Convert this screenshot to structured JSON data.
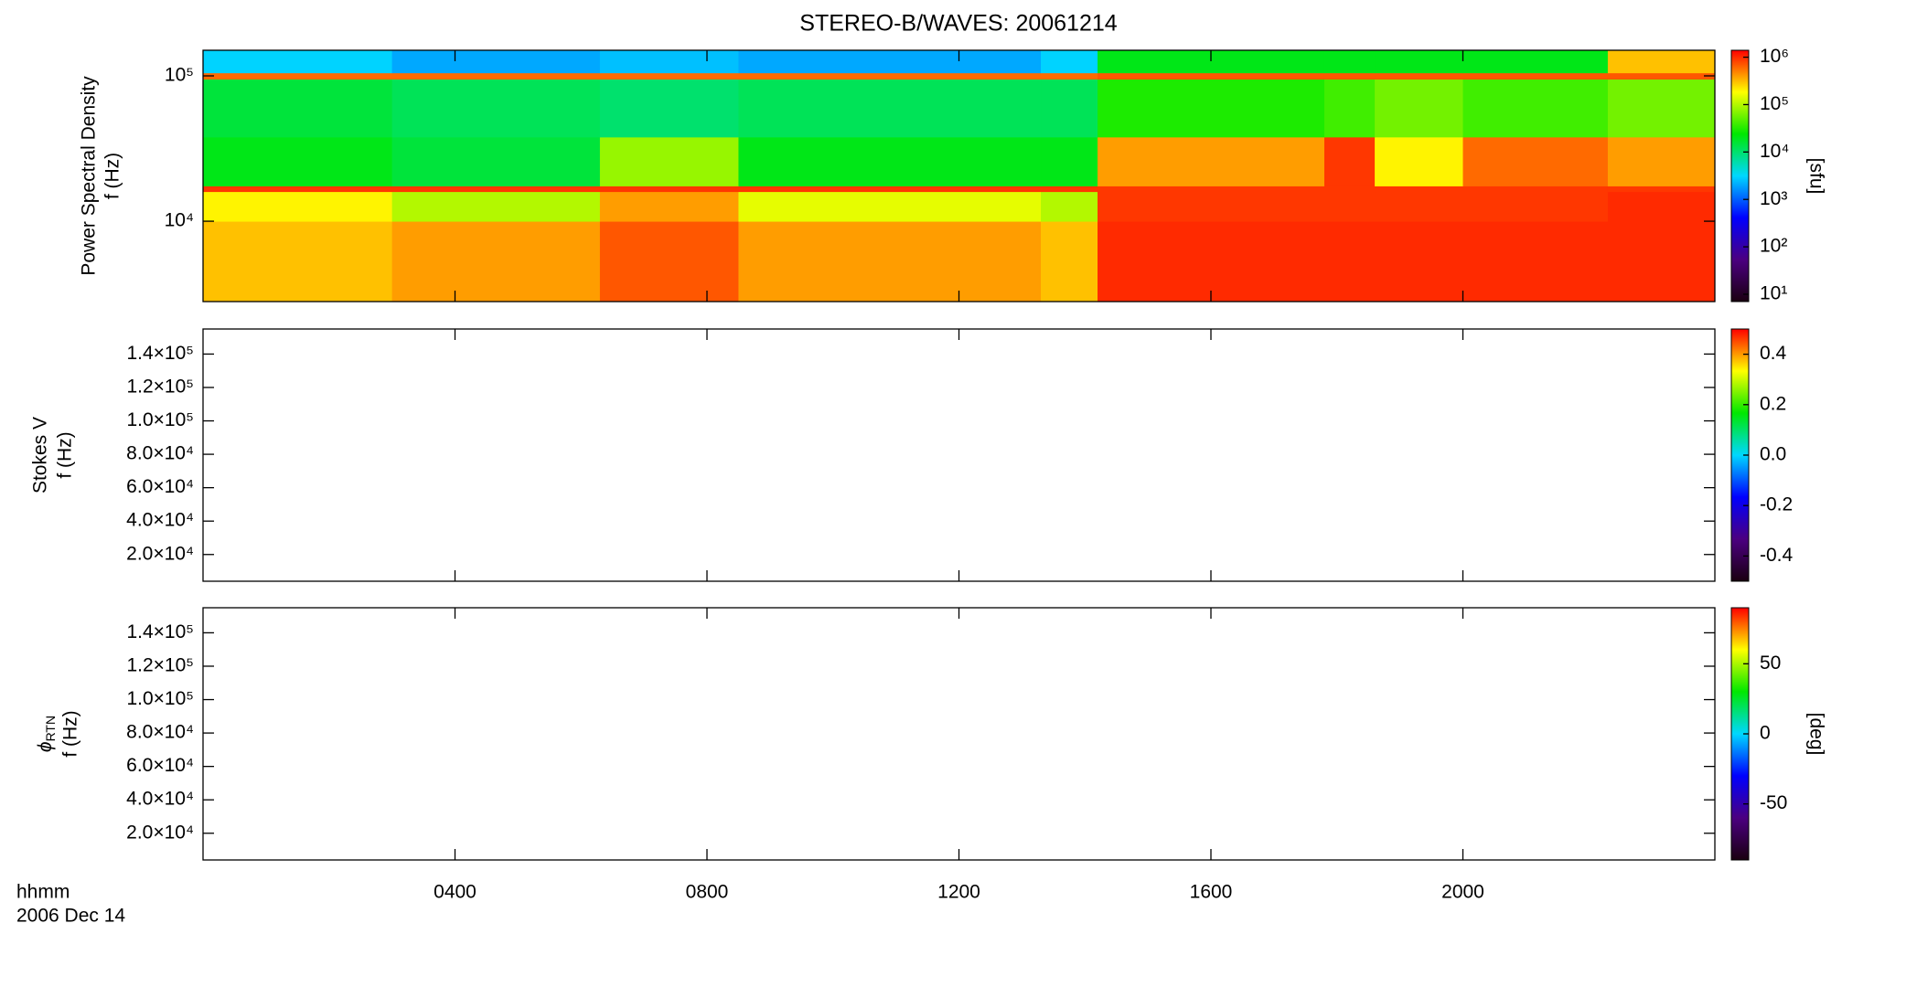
{
  "title": "STEREO-B/WAVES: 20061214",
  "time_label": "hhmm",
  "date_label": "2006 Dec 14",
  "chart_data": [
    {
      "type": "heatmap",
      "y_label": "Power Spectral Density",
      "y_label_2": "f (Hz)",
      "xlim": [
        0,
        24
      ],
      "xticks": [
        {
          "value": 4,
          "label": "0400"
        },
        {
          "value": 8,
          "label": "0800"
        },
        {
          "value": 12,
          "label": "1200"
        },
        {
          "value": 16,
          "label": "1600"
        },
        {
          "value": 20,
          "label": "2000"
        }
      ],
      "ylim": [
        2800,
        150000
      ],
      "yscale": "log",
      "yticks": [
        {
          "value": 10000,
          "label": "10⁴"
        },
        {
          "value": 100000,
          "label": "10⁵"
        }
      ],
      "x_bins": [
        0,
        3,
        6.3,
        8.5,
        13.3,
        14.2,
        17.8,
        18.6,
        20,
        22.3,
        24
      ],
      "y_bins": [
        2800,
        10000,
        16000,
        17500,
        38000,
        95000,
        105000,
        150000
      ],
      "values": [
        [
          300000,
          400000,
          700000,
          400000,
          300000,
          1000000,
          1000000,
          1000000,
          1000000,
          1000000
        ],
        [
          200000,
          100000,
          400000,
          150000,
          100000,
          900000,
          900000,
          900000,
          900000,
          1000000
        ],
        [
          900000,
          900000,
          900000,
          900000,
          900000,
          900000,
          900000,
          900000,
          900000,
          900000
        ],
        [
          20000,
          15000,
          80000,
          20000,
          20000,
          400000,
          900000,
          200000,
          600000,
          400000
        ],
        [
          15000,
          12000,
          10000,
          12000,
          12000,
          30000,
          40000,
          60000,
          40000,
          60000
        ],
        [
          600000,
          600000,
          600000,
          600000,
          600000,
          700000,
          700000,
          700000,
          700000,
          700000
        ],
        [
          3000,
          2000,
          2500,
          2000,
          3000,
          20000,
          20000,
          20000,
          20000,
          300000
        ]
      ],
      "clim": [
        7,
        1400000
      ],
      "cscale": "log",
      "cticks": [
        {
          "value": 10,
          "label": "10¹"
        },
        {
          "value": 100,
          "label": "10²"
        },
        {
          "value": 1000,
          "label": "10³"
        },
        {
          "value": 10000,
          "label": "10⁴"
        },
        {
          "value": 100000,
          "label": "10⁵"
        },
        {
          "value": 1000000,
          "label": "10⁶"
        }
      ],
      "colorbar_label": "[sfu]",
      "colors": [
        "#1a0010",
        "#4b0080",
        "#0000ff",
        "#00d8ff",
        "#00e800",
        "#ffff00",
        "#ff0000"
      ]
    },
    {
      "type": "heatmap",
      "y_label": "Stokes V",
      "y_label_2": "f (Hz)",
      "ylim": [
        4000,
        155000
      ],
      "yticks": [
        {
          "value": 20000,
          "label": "2.0×10⁴"
        },
        {
          "value": 40000,
          "label": "4.0×10⁴"
        },
        {
          "value": 60000,
          "label": "6.0×10⁴"
        },
        {
          "value": 80000,
          "label": "8.0×10⁴"
        },
        {
          "value": 100000,
          "label": "1.0×10⁵"
        },
        {
          "value": 120000,
          "label": "1.2×10⁵"
        },
        {
          "value": 140000,
          "label": "1.4×10⁵"
        }
      ],
      "clim": [
        -0.5,
        0.5
      ],
      "cticks": [
        -0.4,
        -0.2,
        {
          "value": 0,
          "label": "0.0"
        },
        0.2,
        0.4
      ],
      "colors": [
        "#1a0010",
        "#4b0080",
        "#0000ff",
        "#00d8ff",
        "#00e800",
        "#ffff00",
        "#ff0000"
      ]
    },
    {
      "type": "heatmap",
      "y_label_symbol": "ϕ",
      "y_label_sub": "RTN",
      "y_label_2": "f (Hz)",
      "ylim": [
        4000,
        155000
      ],
      "yticks": [
        {
          "value": 20000,
          "label": "2.0×10⁴"
        },
        {
          "value": 40000,
          "label": "4.0×10⁴"
        },
        {
          "value": 60000,
          "label": "6.0×10⁴"
        },
        {
          "value": 80000,
          "label": "8.0×10⁴"
        },
        {
          "value": 100000,
          "label": "1.0×10⁵"
        },
        {
          "value": 120000,
          "label": "1.2×10⁵"
        },
        {
          "value": 140000,
          "label": "1.4×10⁵"
        }
      ],
      "clim": [
        -90,
        90
      ],
      "cticks": [
        -50,
        0,
        50
      ],
      "colorbar_label": "[deg]",
      "colors": [
        "#1a0010",
        "#4b0080",
        "#0000ff",
        "#00d8ff",
        "#00e800",
        "#ffff00",
        "#ff0000"
      ]
    }
  ]
}
